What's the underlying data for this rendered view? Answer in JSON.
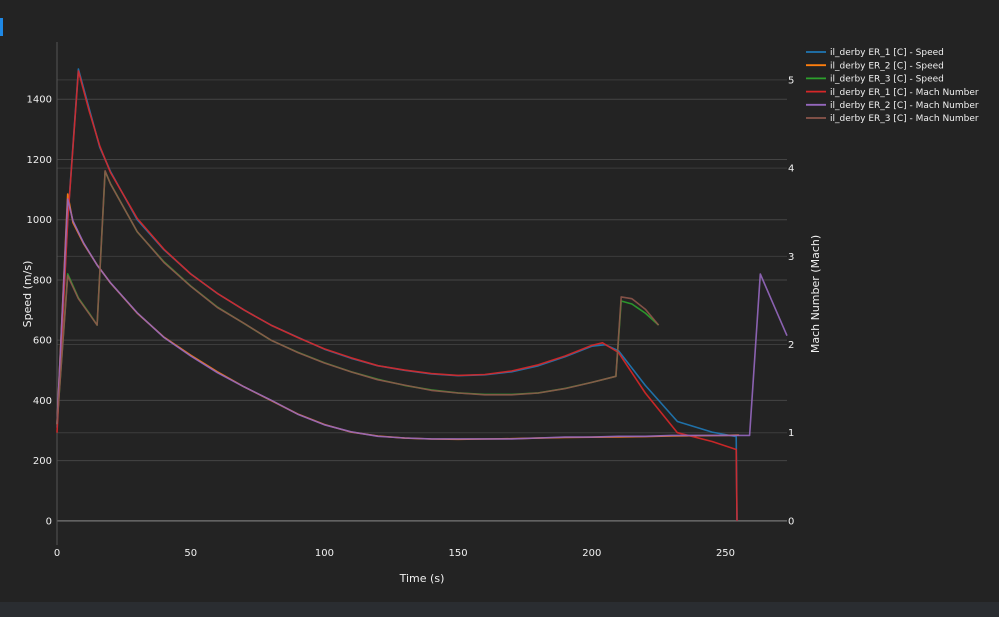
{
  "chart_data": {
    "type": "line",
    "xlabel": "Time (s)",
    "ylabel": "Speed (m/s)",
    "y2label": "Mach Number (Mach)",
    "xlim": [
      0,
      273
    ],
    "ylim": [
      -80,
      1590
    ],
    "y2lim": [
      -0.273,
      5.43
    ],
    "x_ticks": [
      0,
      50,
      100,
      150,
      200,
      250
    ],
    "y_ticks": [
      0,
      200,
      400,
      600,
      800,
      1000,
      1200,
      1400
    ],
    "y2_ticks": [
      0,
      1,
      2,
      3,
      4,
      5
    ],
    "legend_position": "top-right",
    "grid": true,
    "series": [
      {
        "name": "il_derby ER_1 [C] - Speed",
        "axis": "y",
        "color": "#1f77b4",
        "x": [
          0,
          4,
          8,
          12,
          16,
          20,
          30,
          40,
          50,
          60,
          70,
          80,
          90,
          100,
          110,
          120,
          130,
          140,
          150,
          160,
          170,
          180,
          190,
          200,
          205,
          210,
          220,
          232,
          245,
          254,
          254.3
        ],
        "y": [
          310,
          1000,
          1500,
          1370,
          1240,
          1160,
          1000,
          900,
          820,
          755,
          700,
          650,
          610,
          570,
          540,
          515,
          500,
          488,
          482,
          485,
          495,
          515,
          545,
          580,
          585,
          565,
          450,
          330,
          295,
          280,
          0
        ]
      },
      {
        "name": "il_derby ER_2 [C] - Speed",
        "axis": "y",
        "color": "#ff7f0e",
        "x": [
          0,
          4,
          6,
          10,
          15,
          20,
          30,
          40,
          50,
          60,
          70,
          80,
          90,
          100,
          110,
          120,
          130,
          140,
          150,
          160,
          170,
          180,
          190,
          200,
          210,
          220,
          230,
          240,
          250,
          255
        ],
        "y": [
          320,
          1085,
          990,
          920,
          850,
          790,
          690,
          610,
          550,
          495,
          445,
          400,
          355,
          320,
          295,
          282,
          275,
          272,
          271,
          272,
          273,
          275,
          277,
          278,
          279,
          280,
          282,
          283,
          284,
          285
        ]
      },
      {
        "name": "il_derby ER_3 [C] - Speed",
        "axis": "y",
        "color": "#2ca02c",
        "x": [
          0,
          4,
          8,
          12,
          15,
          18,
          20,
          30,
          40,
          50,
          60,
          70,
          80,
          90,
          100,
          110,
          120,
          130,
          140,
          150,
          160,
          170,
          180,
          190,
          200,
          209,
          211,
          215,
          220,
          225
        ],
        "y": [
          320,
          820,
          740,
          690,
          650,
          1160,
          1120,
          960,
          860,
          780,
          710,
          655,
          600,
          560,
          525,
          495,
          470,
          450,
          435,
          425,
          420,
          420,
          425,
          440,
          460,
          480,
          730,
          720,
          690,
          650
        ]
      },
      {
        "name": "il_derby ER_1 [C] - Mach Number",
        "axis": "y2",
        "color": "#d62728",
        "x": [
          0,
          4,
          8,
          12,
          16,
          20,
          30,
          40,
          50,
          60,
          70,
          80,
          90,
          100,
          110,
          120,
          130,
          140,
          150,
          160,
          170,
          180,
          190,
          200,
          204,
          210,
          220,
          232,
          245,
          254,
          254.3
        ],
        "y": [
          1.0,
          3.4,
          5.1,
          4.65,
          4.25,
          3.95,
          3.43,
          3.08,
          2.8,
          2.58,
          2.39,
          2.22,
          2.08,
          1.95,
          1.85,
          1.76,
          1.71,
          1.67,
          1.65,
          1.66,
          1.7,
          1.77,
          1.87,
          1.99,
          2.02,
          1.91,
          1.45,
          1.0,
          0.9,
          0.81,
          0
        ]
      },
      {
        "name": "il_derby ER_2 [C] - Mach Number",
        "axis": "y2",
        "color": "#9467bd",
        "x": [
          0,
          4,
          6,
          10,
          15,
          20,
          30,
          40,
          50,
          60,
          70,
          80,
          90,
          100,
          110,
          120,
          130,
          140,
          150,
          160,
          170,
          180,
          190,
          200,
          210,
          220,
          230,
          240,
          250,
          259,
          263,
          268,
          273
        ],
        "y": [
          1.1,
          3.65,
          3.4,
          3.15,
          2.9,
          2.7,
          2.36,
          2.08,
          1.87,
          1.68,
          1.52,
          1.37,
          1.21,
          1.09,
          1.01,
          0.96,
          0.94,
          0.93,
          0.93,
          0.93,
          0.93,
          0.94,
          0.95,
          0.95,
          0.96,
          0.96,
          0.97,
          0.97,
          0.97,
          0.97,
          2.8,
          2.45,
          2.1
        ]
      },
      {
        "name": "il_derby ER_3 [C] - Mach Number",
        "axis": "y2",
        "color": "#8c564b",
        "x": [
          0,
          4,
          8,
          12,
          15,
          18,
          20,
          30,
          40,
          50,
          60,
          70,
          80,
          90,
          100,
          110,
          120,
          130,
          140,
          150,
          160,
          170,
          180,
          190,
          200,
          209,
          211,
          215,
          220,
          225
        ],
        "y": [
          1.1,
          2.78,
          2.52,
          2.35,
          2.22,
          3.97,
          3.82,
          3.28,
          2.93,
          2.66,
          2.42,
          2.24,
          2.05,
          1.91,
          1.79,
          1.69,
          1.6,
          1.54,
          1.48,
          1.45,
          1.43,
          1.43,
          1.45,
          1.5,
          1.57,
          1.64,
          2.54,
          2.52,
          2.4,
          2.22
        ]
      }
    ]
  }
}
